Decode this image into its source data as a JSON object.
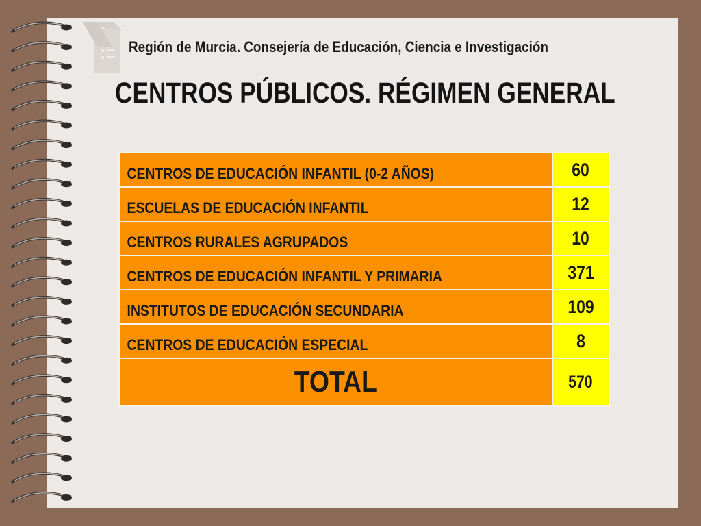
{
  "header": {
    "subtitle": "Región de Murcia. Consejería de Educación, Ciencia e Investigación",
    "title": "CENTROS PÚBLICOS. RÉGIMEN GENERAL"
  },
  "table": {
    "rows": [
      {
        "label": "CENTROS DE EDUCACIÓN INFANTIL (0-2 AÑOS)",
        "value": "60"
      },
      {
        "label": "ESCUELAS DE EDUCACIÓN INFANTIL",
        "value": "12"
      },
      {
        "label": "CENTROS RURALES AGRUPADOS",
        "value": "10"
      },
      {
        "label": "CENTROS DE EDUCACIÓN INFANTIL Y PRIMARIA",
        "value": "371"
      },
      {
        "label": "INSTITUTOS DE EDUCACIÓN SECUNDARIA",
        "value": "109"
      },
      {
        "label": "CENTROS DE EDUCACIÓN ESPECIAL",
        "value": "8"
      }
    ],
    "total_label": "TOTAL",
    "total_value": "570"
  },
  "colors": {
    "background": "#8b6a58",
    "page": "#ece9e6",
    "label_cell": "#fa9000",
    "value_cell": "#ffff00"
  }
}
